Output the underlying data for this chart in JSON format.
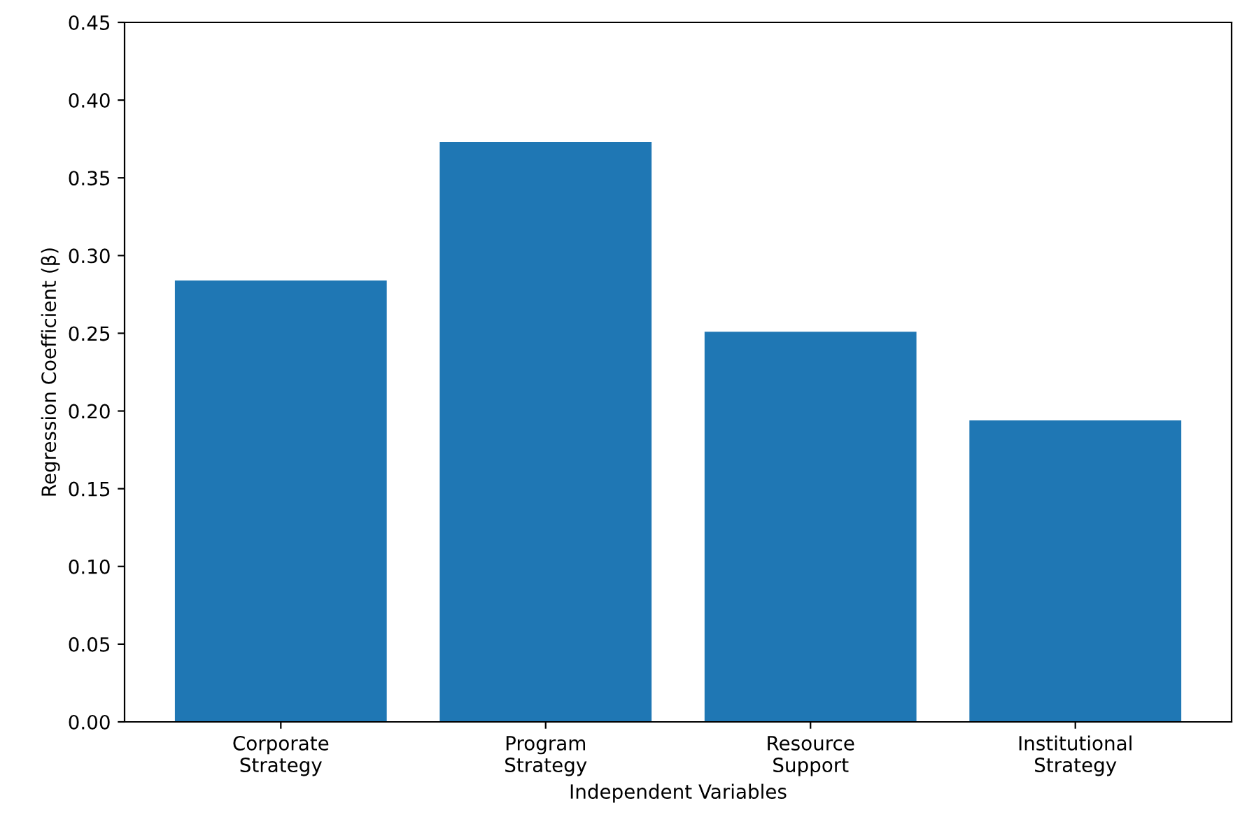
{
  "chart_data": {
    "type": "bar",
    "xlabel": "Independent Variables",
    "ylabel": "Regression Coefficient (β)",
    "categories": [
      "Corporate\nStrategy",
      "Program\nStrategy",
      "Resource\nSupport",
      "Institutional\nStrategy"
    ],
    "values": [
      0.284,
      0.373,
      0.251,
      0.194
    ],
    "color": "#1f77b4",
    "ylim": [
      0,
      0.45
    ],
    "yticks": [
      {
        "value": 0,
        "label": "0.00"
      },
      {
        "value": 0.05,
        "label": "0.05"
      },
      {
        "value": 0.1,
        "label": "0.10"
      },
      {
        "value": 0.15,
        "label": "0.15"
      },
      {
        "value": 0.2,
        "label": "0.20"
      },
      {
        "value": 0.25,
        "label": "0.25"
      },
      {
        "value": 0.3,
        "label": "0.30"
      },
      {
        "value": 0.35,
        "label": "0.35"
      },
      {
        "value": 0.4,
        "label": "0.40"
      },
      {
        "value": 0.45,
        "label": "0.45"
      }
    ],
    "grid": false
  }
}
